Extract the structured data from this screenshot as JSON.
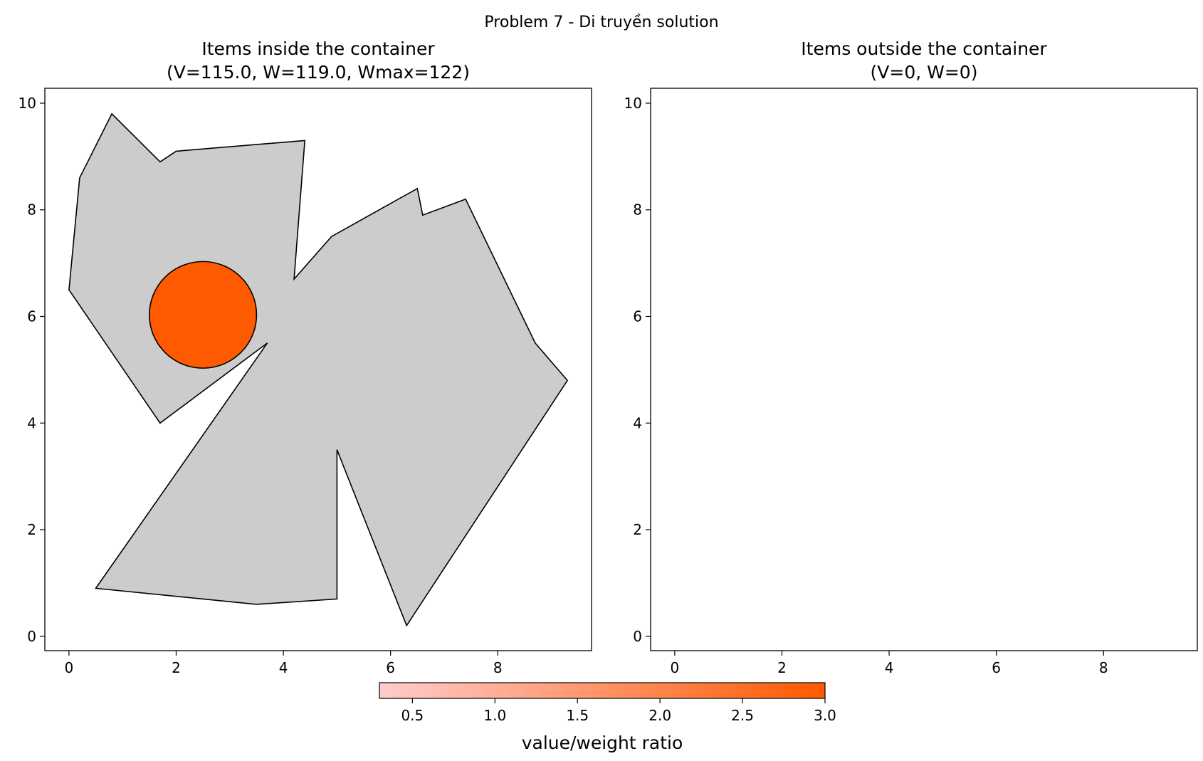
{
  "figure": {
    "suptitle": "Problem 7 - Di truyền solution"
  },
  "chart_data": [
    {
      "type": "polygon-plot",
      "title_line1": "Items inside the container",
      "title_line2": "(V=115.0, W=119.0, Wmax=122)",
      "xlim": [
        -0.45,
        9.75
      ],
      "ylim": [
        -0.27,
        10.28
      ],
      "xticks": [
        "0",
        "2",
        "4",
        "6",
        "8"
      ],
      "yticks": [
        "0",
        "2",
        "4",
        "6",
        "8",
        "10"
      ],
      "xtick_values": [
        0,
        2,
        4,
        6,
        8
      ],
      "ytick_values": [
        0,
        2,
        4,
        6,
        8,
        10
      ],
      "container": {
        "fill": "#cccccc",
        "points": [
          [
            0,
            6.5
          ],
          [
            0.2,
            8.6
          ],
          [
            0.8,
            9.8
          ],
          [
            1.7,
            8.9
          ],
          [
            2.0,
            9.1
          ],
          [
            4.4,
            9.3
          ],
          [
            4.2,
            6.7
          ],
          [
            4.9,
            7.5
          ],
          [
            6.5,
            8.4
          ],
          [
            6.6,
            7.9
          ],
          [
            7.4,
            8.2
          ],
          [
            8.7,
            5.5
          ],
          [
            9.3,
            4.8
          ],
          [
            6.3,
            0.2
          ],
          [
            5.0,
            3.5
          ],
          [
            5.0,
            0.7
          ],
          [
            3.5,
            0.6
          ],
          [
            0.5,
            0.9
          ],
          [
            3.7,
            5.5
          ],
          [
            1.7,
            4.0
          ]
        ]
      },
      "items": [
        {
          "shape": "circle",
          "center": [
            2.5,
            6.03
          ],
          "radius": 1.0,
          "fill": "#ff5a00",
          "ratio": 3.0
        }
      ]
    },
    {
      "type": "polygon-plot",
      "title_line1": "Items outside the container",
      "title_line2": "(V=0, W=0)",
      "xlim": [
        -0.45,
        9.75
      ],
      "ylim": [
        -0.27,
        10.28
      ],
      "xticks": [
        "0",
        "2",
        "4",
        "6",
        "8"
      ],
      "yticks": [
        "0",
        "2",
        "4",
        "6",
        "8",
        "10"
      ],
      "xtick_values": [
        0,
        2,
        4,
        6,
        8
      ],
      "ytick_values": [
        0,
        2,
        4,
        6,
        8,
        10
      ],
      "items": []
    }
  ],
  "colorbar": {
    "label": "value/weight ratio",
    "range": [
      0.3,
      3.0
    ],
    "ticks": [
      "0.5",
      "1.0",
      "1.5",
      "2.0",
      "2.5",
      "3.0"
    ],
    "tick_values": [
      0.5,
      1.0,
      1.5,
      2.0,
      2.5,
      3.0
    ],
    "color_low": "#ffcccc",
    "color_high": "#ff5a00"
  }
}
